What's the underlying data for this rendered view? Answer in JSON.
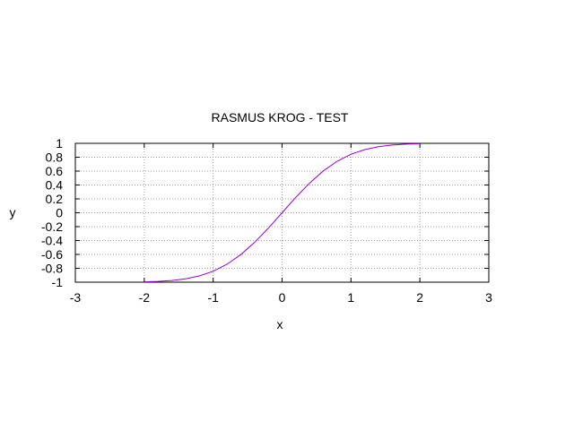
{
  "chart_data": {
    "type": "line",
    "title": "RASMUS KROG - TEST",
    "xlabel": "x",
    "ylabel": "y",
    "xlim": [
      -3,
      3
    ],
    "ylim": [
      -1,
      1
    ],
    "x_ticks": [
      "-3",
      "-2",
      "-1",
      "0",
      "1",
      "2",
      "3"
    ],
    "y_ticks": [
      "-1",
      "-0.8",
      "-0.6",
      "-0.4",
      "-0.2",
      "0",
      "0.2",
      "0.4",
      "0.6",
      "0.8",
      "1"
    ],
    "grid": true,
    "legend": "none",
    "series": [
      {
        "color": "#9400d3",
        "x": [
          -2.0,
          -1.8,
          -1.6,
          -1.4,
          -1.2,
          -1.0,
          -0.8,
          -0.6,
          -0.4,
          -0.2,
          0.0,
          0.2,
          0.4,
          0.6,
          0.8,
          1.0,
          1.2,
          1.4,
          1.6,
          1.8,
          2.0
        ],
        "y": [
          -0.995,
          -0.989,
          -0.976,
          -0.952,
          -0.91,
          -0.843,
          -0.742,
          -0.604,
          -0.428,
          -0.223,
          0.0,
          0.223,
          0.428,
          0.604,
          0.742,
          0.843,
          0.91,
          0.952,
          0.976,
          0.989,
          0.995
        ]
      }
    ]
  }
}
